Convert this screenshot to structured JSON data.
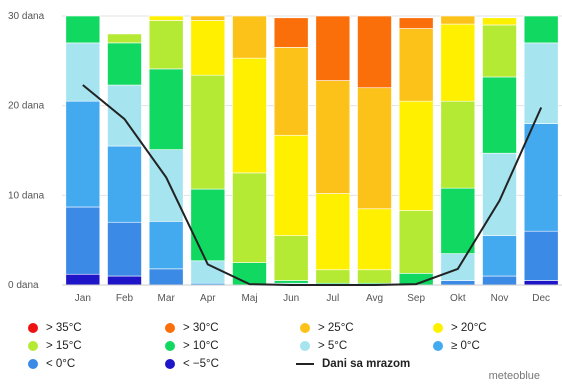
{
  "chart_data": {
    "type": "bar",
    "stacked": true,
    "categories": [
      "Jan",
      "Feb",
      "Mar",
      "Apr",
      "Maj",
      "Jun",
      "Jul",
      "Avg",
      "Sep",
      "Okt",
      "Nov",
      "Dec"
    ],
    "ylim": [
      0,
      30
    ],
    "yticks": [
      {
        "value": 0,
        "label": "0 dana"
      },
      {
        "value": 10,
        "label": "10 dana"
      },
      {
        "value": 20,
        "label": "20 dana"
      },
      {
        "value": 30,
        "label": "30 dana"
      }
    ],
    "grid": true,
    "legend_position": "bottom",
    "series": [
      {
        "name": "< −5°C",
        "color": "#1e14c8",
        "values": [
          1.2,
          1.0,
          0.0,
          0.0,
          0.0,
          0.0,
          0.0,
          0.0,
          0.0,
          0.0,
          0.0,
          0.5
        ]
      },
      {
        "name": "< 0°C",
        "color": "#3a8ae6",
        "values": [
          7.5,
          6.0,
          1.8,
          0.0,
          0.0,
          0.0,
          0.0,
          0.0,
          0.0,
          0.5,
          1.0,
          5.5
        ]
      },
      {
        "name": "≥ 0°C",
        "color": "#44aaf0",
        "values": [
          11.8,
          8.5,
          5.3,
          0.2,
          0.0,
          0.0,
          0.0,
          0.0,
          0.0,
          0.0,
          4.5,
          12.0
        ]
      },
      {
        "name": "> 5°C",
        "color": "#a6e4f0",
        "values": [
          6.5,
          6.8,
          8.0,
          2.5,
          0.0,
          0.2,
          0.0,
          0.0,
          0.0,
          3.0,
          9.2,
          9.0
        ]
      },
      {
        "name": "> 10°C",
        "color": "#10d860",
        "values": [
          3.0,
          4.7,
          9.0,
          8.0,
          2.5,
          0.3,
          0.2,
          0.2,
          1.3,
          7.3,
          8.5,
          3.0
        ]
      },
      {
        "name": "> 15°C",
        "color": "#b4ea34",
        "values": [
          0.0,
          1.0,
          5.4,
          12.7,
          10.0,
          5.0,
          1.5,
          1.5,
          7.0,
          9.7,
          5.8,
          0.0
        ]
      },
      {
        "name": "> 20°C",
        "color": "#fff000",
        "values": [
          0.0,
          0.0,
          0.5,
          6.1,
          12.8,
          11.2,
          8.5,
          6.8,
          12.2,
          8.6,
          0.8,
          0.0
        ]
      },
      {
        "name": "> 25°C",
        "color": "#fcc21a",
        "values": [
          0.0,
          0.0,
          0.0,
          0.5,
          4.7,
          9.8,
          12.6,
          13.5,
          8.1,
          0.9,
          0.0,
          0.0
        ]
      },
      {
        "name": "> 30°C",
        "color": "#fa6f0a",
        "values": [
          0.0,
          0.0,
          0.0,
          0.0,
          0.0,
          3.3,
          7.2,
          8.0,
          1.2,
          0.0,
          0.0,
          0.0
        ]
      },
      {
        "name": "> 35°C",
        "color": "#ee1212",
        "values": [
          0.0,
          0.0,
          0.0,
          0.0,
          0.0,
          0.0,
          0.0,
          0.0,
          0.0,
          0.0,
          0.0,
          0.0
        ]
      }
    ],
    "line": {
      "name": "Dani sa mrazom",
      "color": "#222222",
      "values": [
        22.3,
        18.5,
        12.0,
        2.3,
        0.1,
        0.0,
        0.0,
        0.0,
        0.1,
        1.8,
        9.4,
        19.8
      ]
    }
  },
  "legend": [
    {
      "label": "> 35°C",
      "color": "#ee1212",
      "kind": "dot"
    },
    {
      "label": "> 30°C",
      "color": "#fa6f0a",
      "kind": "dot"
    },
    {
      "label": "> 25°C",
      "color": "#fcc21a",
      "kind": "dot"
    },
    {
      "label": "> 20°C",
      "color": "#fff000",
      "kind": "dot"
    },
    {
      "label": "> 15°C",
      "color": "#b4ea34",
      "kind": "dot"
    },
    {
      "label": "> 10°C",
      "color": "#10d860",
      "kind": "dot"
    },
    {
      "label": "> 5°C",
      "color": "#a6e4f0",
      "kind": "dot"
    },
    {
      "label": "≥ 0°C",
      "color": "#44aaf0",
      "kind": "dot"
    },
    {
      "label": "< 0°C",
      "color": "#3a8ae6",
      "kind": "dot"
    },
    {
      "label": "< −5°C",
      "color": "#1e14c8",
      "kind": "dot"
    },
    {
      "label": "Dani sa mrazom",
      "color": "#222222",
      "kind": "line"
    }
  ],
  "credit": "meteoblue"
}
